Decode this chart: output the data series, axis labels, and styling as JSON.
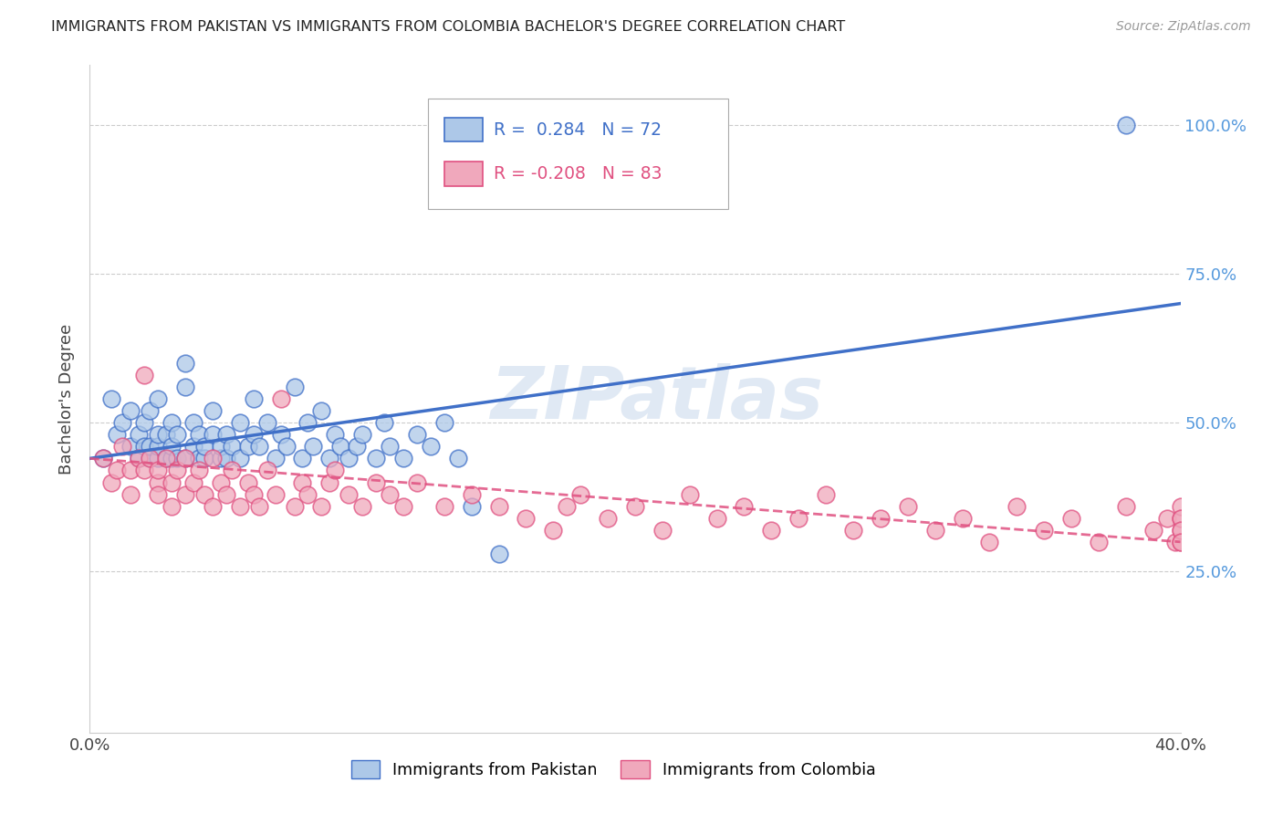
{
  "title": "IMMIGRANTS FROM PAKISTAN VS IMMIGRANTS FROM COLOMBIA BACHELOR'S DEGREE CORRELATION CHART",
  "source": "Source: ZipAtlas.com",
  "ylabel": "Bachelor's Degree",
  "ytick_labels": [
    "100.0%",
    "75.0%",
    "50.0%",
    "25.0%"
  ],
  "ytick_values": [
    1.0,
    0.75,
    0.5,
    0.25
  ],
  "xlim": [
    0.0,
    0.4
  ],
  "ylim": [
    -0.02,
    1.1
  ],
  "pakistan_R": 0.284,
  "pakistan_N": 72,
  "colombia_R": -0.208,
  "colombia_N": 83,
  "pakistan_color": "#adc8e8",
  "pakistan_line_color": "#4070c8",
  "colombia_color": "#f0a8bc",
  "colombia_line_color": "#e05080",
  "legend_pakistan_label": "Immigrants from Pakistan",
  "legend_colombia_label": "Immigrants from Colombia",
  "watermark": "ZIPatlas",
  "background_color": "#ffffff",
  "grid_color": "#cccccc",
  "pakistan_x": [
    0.005,
    0.008,
    0.01,
    0.012,
    0.015,
    0.015,
    0.018,
    0.018,
    0.02,
    0.02,
    0.022,
    0.022,
    0.022,
    0.025,
    0.025,
    0.025,
    0.025,
    0.028,
    0.028,
    0.03,
    0.03,
    0.03,
    0.032,
    0.032,
    0.035,
    0.035,
    0.035,
    0.038,
    0.038,
    0.04,
    0.04,
    0.042,
    0.042,
    0.045,
    0.045,
    0.048,
    0.048,
    0.05,
    0.05,
    0.052,
    0.055,
    0.055,
    0.058,
    0.06,
    0.06,
    0.062,
    0.065,
    0.068,
    0.07,
    0.072,
    0.075,
    0.078,
    0.08,
    0.082,
    0.085,
    0.088,
    0.09,
    0.092,
    0.095,
    0.098,
    0.1,
    0.105,
    0.108,
    0.11,
    0.115,
    0.12,
    0.125,
    0.13,
    0.135,
    0.14,
    0.15,
    0.38
  ],
  "pakistan_y": [
    0.44,
    0.54,
    0.48,
    0.5,
    0.46,
    0.52,
    0.44,
    0.48,
    0.46,
    0.5,
    0.44,
    0.46,
    0.52,
    0.44,
    0.46,
    0.48,
    0.54,
    0.44,
    0.48,
    0.44,
    0.46,
    0.5,
    0.44,
    0.48,
    0.56,
    0.6,
    0.44,
    0.46,
    0.5,
    0.44,
    0.48,
    0.44,
    0.46,
    0.48,
    0.52,
    0.44,
    0.46,
    0.44,
    0.48,
    0.46,
    0.5,
    0.44,
    0.46,
    0.48,
    0.54,
    0.46,
    0.5,
    0.44,
    0.48,
    0.46,
    0.56,
    0.44,
    0.5,
    0.46,
    0.52,
    0.44,
    0.48,
    0.46,
    0.44,
    0.46,
    0.48,
    0.44,
    0.5,
    0.46,
    0.44,
    0.48,
    0.46,
    0.5,
    0.44,
    0.36,
    0.28,
    1.0
  ],
  "colombia_x": [
    0.005,
    0.008,
    0.01,
    0.012,
    0.015,
    0.015,
    0.018,
    0.02,
    0.02,
    0.022,
    0.025,
    0.025,
    0.025,
    0.028,
    0.03,
    0.03,
    0.032,
    0.035,
    0.035,
    0.038,
    0.04,
    0.042,
    0.045,
    0.045,
    0.048,
    0.05,
    0.052,
    0.055,
    0.058,
    0.06,
    0.062,
    0.065,
    0.068,
    0.07,
    0.075,
    0.078,
    0.08,
    0.085,
    0.088,
    0.09,
    0.095,
    0.1,
    0.105,
    0.11,
    0.115,
    0.12,
    0.13,
    0.14,
    0.15,
    0.16,
    0.17,
    0.175,
    0.18,
    0.19,
    0.2,
    0.21,
    0.22,
    0.23,
    0.24,
    0.25,
    0.26,
    0.27,
    0.28,
    0.29,
    0.3,
    0.31,
    0.32,
    0.33,
    0.34,
    0.35,
    0.36,
    0.37,
    0.38,
    0.39,
    0.395,
    0.398,
    0.4,
    0.4,
    0.4,
    0.4,
    0.4,
    0.4,
    0.4
  ],
  "colombia_y": [
    0.44,
    0.4,
    0.42,
    0.46,
    0.42,
    0.38,
    0.44,
    0.42,
    0.58,
    0.44,
    0.4,
    0.42,
    0.38,
    0.44,
    0.4,
    0.36,
    0.42,
    0.38,
    0.44,
    0.4,
    0.42,
    0.38,
    0.44,
    0.36,
    0.4,
    0.38,
    0.42,
    0.36,
    0.4,
    0.38,
    0.36,
    0.42,
    0.38,
    0.54,
    0.36,
    0.4,
    0.38,
    0.36,
    0.4,
    0.42,
    0.38,
    0.36,
    0.4,
    0.38,
    0.36,
    0.4,
    0.36,
    0.38,
    0.36,
    0.34,
    0.32,
    0.36,
    0.38,
    0.34,
    0.36,
    0.32,
    0.38,
    0.34,
    0.36,
    0.32,
    0.34,
    0.38,
    0.32,
    0.34,
    0.36,
    0.32,
    0.34,
    0.3,
    0.36,
    0.32,
    0.34,
    0.3,
    0.36,
    0.32,
    0.34,
    0.3,
    0.34,
    0.32,
    0.3,
    0.36,
    0.34,
    0.32,
    0.3
  ]
}
